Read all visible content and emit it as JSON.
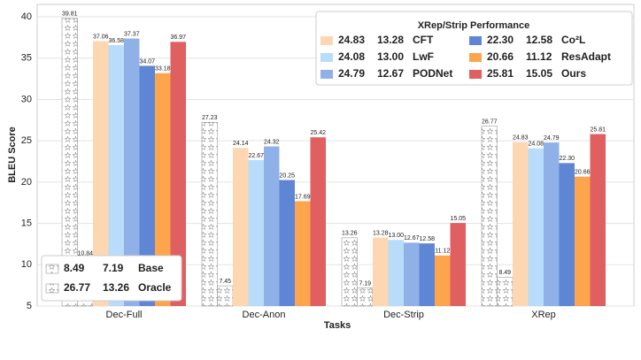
{
  "chart_data": {
    "type": "bar",
    "x_label": "Tasks",
    "y_label": "BLEU Score",
    "legend_title": "XRep/Strip Performance",
    "categories": [
      "Dec-Full",
      "Dec-Anon",
      "Dec-Strip",
      "XRep"
    ],
    "ylim": [
      5,
      41.5
    ],
    "yticks": [
      5,
      10,
      15,
      20,
      25,
      30,
      35,
      40
    ],
    "grid": true,
    "series": [
      {
        "name": "Oracle",
        "color": "#ffffff",
        "hatch": "stars",
        "legend": "lower left",
        "values": [
          39.81,
          27.23,
          13.26,
          26.77
        ],
        "value_labels": [
          "39.81",
          "27.23",
          "13.26",
          "26.77"
        ]
      },
      {
        "name": "Base",
        "color": "#ffffff",
        "hatch": "stars",
        "legend": "lower left",
        "values": [
          10.84,
          7.45,
          7.19,
          8.49
        ],
        "value_labels": [
          "10.84",
          "7.45",
          "7.19",
          "8.49"
        ]
      },
      {
        "name": "CFT",
        "color": "#fdd7b1",
        "legend": "upper right",
        "values": [
          37.06,
          24.14,
          13.28,
          24.83
        ],
        "value_labels": [
          "37.06",
          "24.14",
          "13.28",
          "24.83"
        ]
      },
      {
        "name": "LwF",
        "color": "#b8dcfa",
        "legend": "upper right",
        "values": [
          36.58,
          22.67,
          13.0,
          24.08
        ],
        "value_labels": [
          "36.58",
          "22.67",
          "13.00",
          "24.08"
        ]
      },
      {
        "name": "PODNet",
        "color": "#8fb1e8",
        "legend": "upper right",
        "values": [
          37.37,
          24.32,
          12.67,
          24.79
        ],
        "value_labels": [
          "37.37",
          "24.32",
          "12.67",
          "24.79"
        ]
      },
      {
        "name": "Co²L",
        "color": "#5e86d4",
        "legend": "upper right",
        "values": [
          34.07,
          20.25,
          12.58,
          22.3
        ],
        "value_labels": [
          "34.07",
          "20.25",
          "12.58",
          "22.30"
        ]
      },
      {
        "name": "ResAdapt",
        "color": "#fca54d",
        "legend": "upper right",
        "values": [
          33.18,
          17.69,
          11.12,
          20.66
        ],
        "value_labels": [
          "33.18",
          "17.69",
          "11.12",
          "20.66"
        ]
      },
      {
        "name": "Ours",
        "color": "#e05f60",
        "legend": "upper right",
        "values": [
          36.97,
          25.42,
          15.05,
          25.81
        ],
        "value_labels": [
          "36.97",
          "25.42",
          "15.05",
          "25.81"
        ]
      }
    ]
  }
}
